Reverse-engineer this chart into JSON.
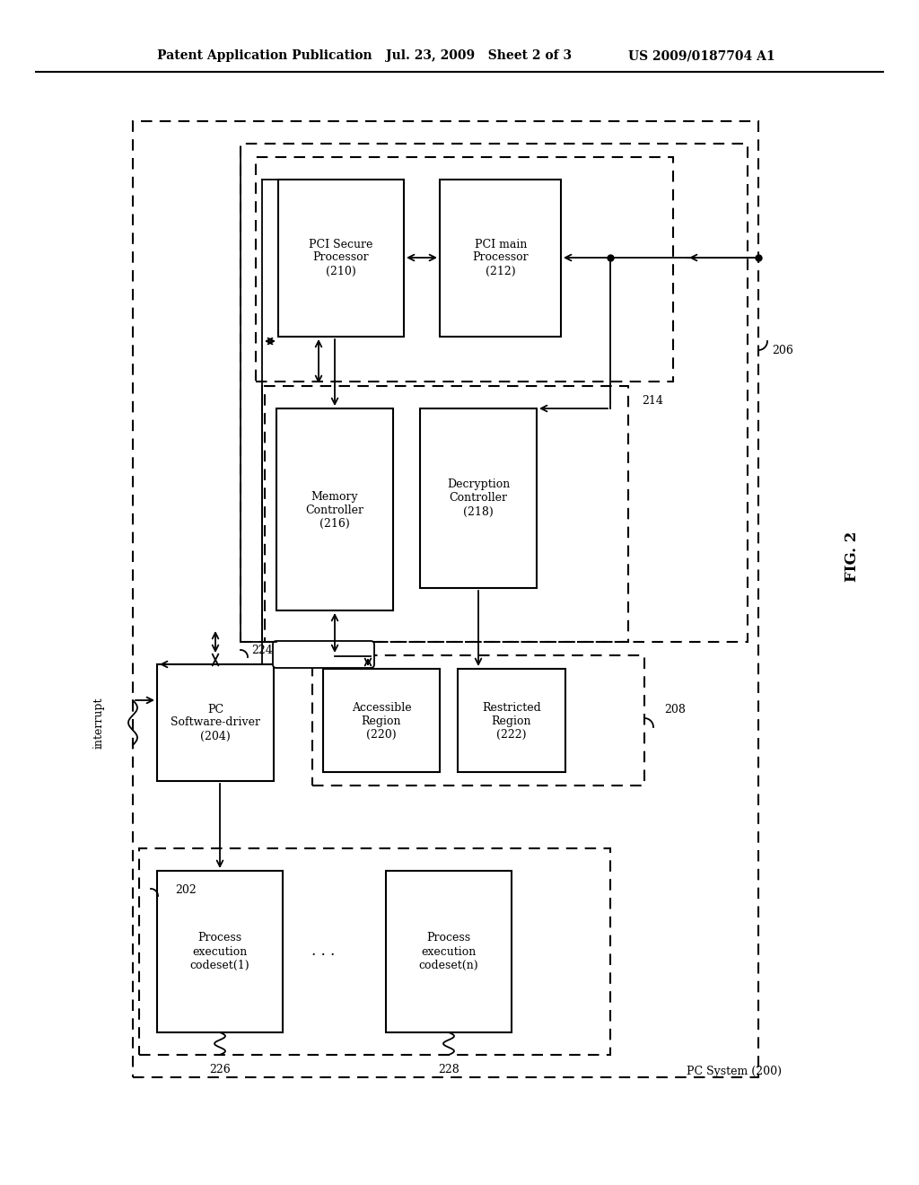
{
  "header_left": "Patent Application Publication",
  "header_center": "Jul. 23, 2009   Sheet 2 of 3",
  "header_right": "US 2009/0187704 A1",
  "fig_label": "FIG. 2",
  "pc_system_label": "PC System (200)",
  "background_color": "#ffffff"
}
